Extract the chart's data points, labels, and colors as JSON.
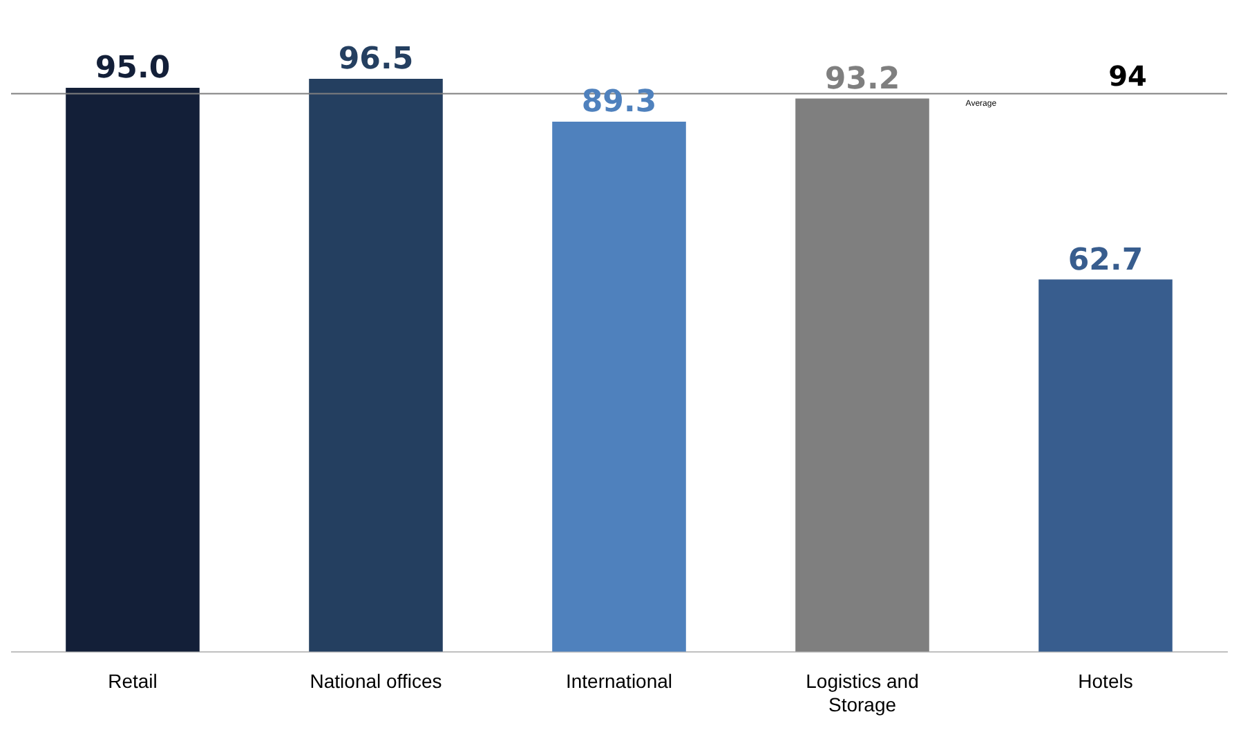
{
  "chart_data": {
    "type": "bar",
    "categories": [
      "Retail",
      "National offices",
      "International",
      "Logistics and Storage",
      "Hotels"
    ],
    "values": [
      95.0,
      96.5,
      89.3,
      93.2,
      62.7
    ],
    "colors": [
      "#131f38",
      "#243f60",
      "#4f81bd",
      "#7f7f7f",
      "#385d8e"
    ],
    "value_labels": [
      "95.0",
      "96.5",
      "89.3",
      "93.2",
      "62.7"
    ],
    "ref_lines": [
      {
        "axis": "y",
        "value": 94,
        "label": "Average",
        "color": "#7f7f7f"
      }
    ],
    "annotations": [
      {
        "text": "94",
        "x": "Hotels",
        "y": 94
      }
    ],
    "grid": false,
    "legend": false
  }
}
